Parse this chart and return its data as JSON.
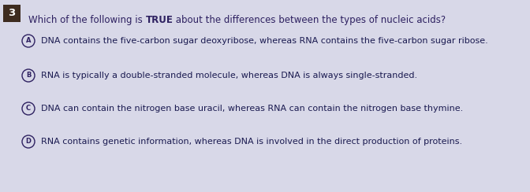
{
  "question_number": "3",
  "question_number_bg": "#3d2b1f",
  "question_text_color": "#2d2060",
  "background_color": "#d8d8e8",
  "circle_color": "#2d2060",
  "circle_fill": "#d8d8e8",
  "answer_text_color": "#1a1a50",
  "question_plain1": "Which of the following is ",
  "question_bold": "TRUE",
  "question_plain2": " about the differences between the types of nucleic acids?",
  "options": [
    {
      "label": "A",
      "text": "DNA contains the five-carbon sugar deoxyribose, whereas RNA contains the five-carbon sugar ribose."
    },
    {
      "label": "B",
      "text": "RNA is typically a double-stranded molecule, whereas DNA is always single-stranded."
    },
    {
      "label": "C",
      "text": "DNA can contain the nitrogen base uracil, whereas RNA can contain the nitrogen base thymine."
    },
    {
      "label": "D",
      "text": "RNA contains genetic information, whereas DNA is involved in the direct production of proteins."
    }
  ],
  "figsize": [
    6.72,
    2.44
  ],
  "dpi": 100,
  "q_fontsize": 8.5,
  "opt_fontsize": 8.0,
  "num_fontsize": 9.5
}
